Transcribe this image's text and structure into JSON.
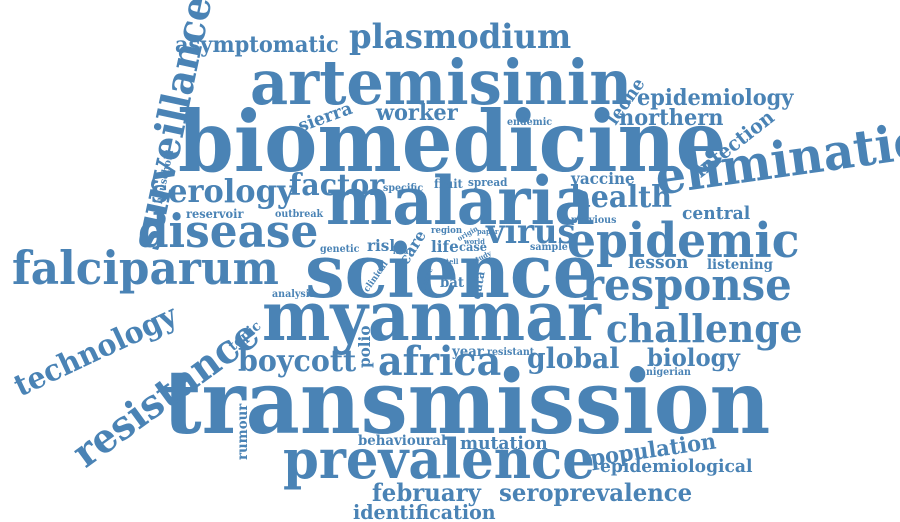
{
  "accent_color": "#4a83b5",
  "words": [
    {
      "text": "transmission"
    },
    {
      "text": "biomedicine"
    },
    {
      "text": "science"
    },
    {
      "text": "myanmar"
    },
    {
      "text": "malaria"
    },
    {
      "text": "artemisinin"
    },
    {
      "text": "prevalence"
    },
    {
      "text": "elimination"
    },
    {
      "text": "epidemic"
    },
    {
      "text": "falciparum"
    },
    {
      "text": "disease"
    },
    {
      "text": "response"
    },
    {
      "text": "challenge"
    },
    {
      "text": "surveillance"
    },
    {
      "text": "resistance"
    },
    {
      "text": "technology"
    },
    {
      "text": "plasmodium"
    },
    {
      "text": "africa"
    },
    {
      "text": "global"
    },
    {
      "text": "boycott"
    },
    {
      "text": "serology"
    },
    {
      "text": "factor"
    },
    {
      "text": "virus"
    },
    {
      "text": "health"
    },
    {
      "text": "asymptomatic"
    },
    {
      "text": "seroprevalence"
    },
    {
      "text": "february"
    },
    {
      "text": "identification"
    },
    {
      "text": "biology"
    },
    {
      "text": "epidemiology"
    },
    {
      "text": "northern"
    },
    {
      "text": "worker"
    },
    {
      "text": "population"
    },
    {
      "text": "epidemiological"
    },
    {
      "text": "infection"
    },
    {
      "text": "leone"
    },
    {
      "text": "sierra"
    },
    {
      "text": "central"
    },
    {
      "text": "lesson"
    },
    {
      "text": "listening"
    },
    {
      "text": "vaccine"
    },
    {
      "text": "mutation"
    },
    {
      "text": "behavioural"
    },
    {
      "text": "polio"
    },
    {
      "text": "rumour"
    },
    {
      "text": "topic"
    },
    {
      "text": "household"
    },
    {
      "text": "reservoir"
    },
    {
      "text": "outbreak"
    },
    {
      "text": "fruit"
    },
    {
      "text": "spread"
    },
    {
      "text": "specific"
    },
    {
      "text": "endemic"
    },
    {
      "text": "year"
    },
    {
      "text": "resistant"
    },
    {
      "text": "nigerian"
    },
    {
      "text": "analysis"
    },
    {
      "text": "risk"
    },
    {
      "text": "care"
    },
    {
      "text": "life"
    },
    {
      "text": "case"
    },
    {
      "text": "bat"
    },
    {
      "text": "data"
    },
    {
      "text": "previous"
    },
    {
      "text": "sample"
    },
    {
      "text": "genetic"
    },
    {
      "text": "region"
    },
    {
      "text": "origin"
    },
    {
      "text": "paper"
    },
    {
      "text": "world"
    },
    {
      "text": "local"
    },
    {
      "text": "clinical"
    },
    {
      "text": "cause"
    },
    {
      "text": "study"
    },
    {
      "text": "tell"
    }
  ]
}
